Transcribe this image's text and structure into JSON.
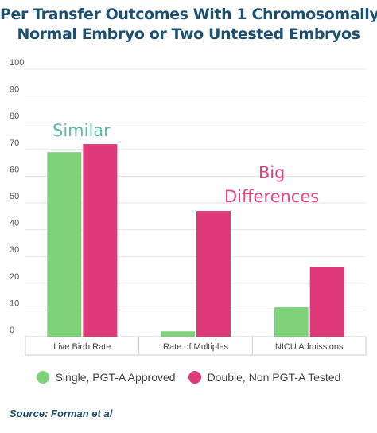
{
  "title_line1": "Per Transfer Outcomes With 1 Chromosomally-",
  "title_line2": "Normal Embryo or Two Untested Embryos",
  "source": "Source: Forman et al",
  "annotations": {
    "similar": "Similar",
    "big_line1": "Big",
    "big_line2": "Differences"
  },
  "colors": {
    "single": "#7ed27a",
    "double": "#e0397a",
    "title": "#1d4f6e",
    "similar": "#5dbba6",
    "big": "#e0457f"
  },
  "chart_data": {
    "type": "bar",
    "categories": [
      "Live Birth Rate",
      "Rate of Multiples",
      "NICU Admissions"
    ],
    "series": [
      {
        "name": "Single, PGT-A Approved",
        "values": [
          69,
          2,
          11
        ]
      },
      {
        "name": "Double, Non PGT-A Tested",
        "values": [
          72,
          47,
          26
        ]
      }
    ],
    "yticks": [
      0,
      10,
      20,
      30,
      40,
      50,
      60,
      70,
      80,
      90,
      100
    ],
    "ylim": [
      0,
      100
    ],
    "grid": true,
    "legend": "bottom"
  }
}
